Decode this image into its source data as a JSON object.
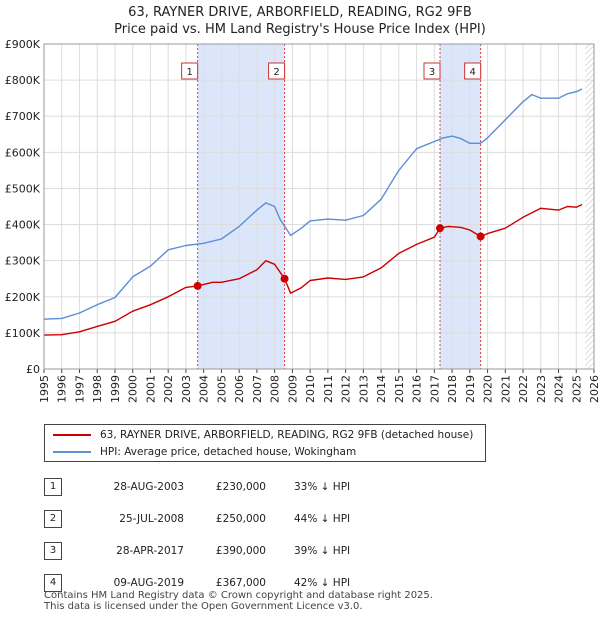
{
  "title": {
    "line1": "63, RAYNER DRIVE, ARBORFIELD, READING, RG2 9FB",
    "line2": "Price paid vs. HM Land Registry's House Price Index (HPI)"
  },
  "colors": {
    "property": "#cc0000",
    "hpi": "#5b8fd4",
    "shade": "#dce6fa"
  },
  "chart_data": {
    "type": "line",
    "xlim": [
      1995,
      2026
    ],
    "ylim": [
      0,
      900000
    ],
    "x_ticks": [
      "1995",
      "1996",
      "1997",
      "1998",
      "1999",
      "2000",
      "2001",
      "2002",
      "2003",
      "2004",
      "2005",
      "2006",
      "2007",
      "2008",
      "2009",
      "2010",
      "2011",
      "2012",
      "2013",
      "2014",
      "2015",
      "2016",
      "2017",
      "2018",
      "2019",
      "2020",
      "2021",
      "2022",
      "2023",
      "2024",
      "2025",
      "2026"
    ],
    "y_ticks": [
      {
        "value": 0,
        "label": "£0"
      },
      {
        "value": 100000,
        "label": "£100K"
      },
      {
        "value": 200000,
        "label": "£200K"
      },
      {
        "value": 300000,
        "label": "£300K"
      },
      {
        "value": 400000,
        "label": "£400K"
      },
      {
        "value": 500000,
        "label": "£500K"
      },
      {
        "value": 600000,
        "label": "£600K"
      },
      {
        "value": 700000,
        "label": "£700K"
      },
      {
        "value": 800000,
        "label": "£800K"
      },
      {
        "value": 900000,
        "label": "£900K"
      }
    ],
    "grid": true,
    "shaded_ranges": [
      [
        2003.66,
        2008.56
      ],
      [
        2017.32,
        2019.61
      ]
    ],
    "future_hatch_start": 2025.5,
    "series": [
      {
        "name": "63, RAYNER DRIVE, ARBORFIELD, READING, RG2 9FB (detached house)",
        "key": "property",
        "x": [
          1995,
          1996,
          1997,
          1998,
          1999,
          2000,
          2001,
          2002,
          2003,
          2003.66,
          2004.5,
          2005,
          2006,
          2007,
          2007.5,
          2008,
          2008.56,
          2008.9,
          2009.5,
          2010,
          2011,
          2012,
          2013,
          2014,
          2015,
          2016,
          2017,
          2017.32,
          2017.8,
          2018.5,
          2019,
          2019.61,
          2020,
          2021,
          2022,
          2023,
          2024,
          2024.5,
          2025,
          2025.3
        ],
        "y": [
          94000,
          95000,
          103000,
          118000,
          132000,
          160000,
          178000,
          200000,
          226000,
          230000,
          240000,
          240000,
          250000,
          275000,
          300000,
          290000,
          250000,
          210000,
          225000,
          245000,
          252000,
          248000,
          255000,
          280000,
          320000,
          345000,
          365000,
          390000,
          395000,
          392000,
          385000,
          367000,
          375000,
          390000,
          420000,
          445000,
          440000,
          450000,
          448000,
          455000
        ]
      },
      {
        "name": "HPI: Average price, detached house, Wokingham",
        "key": "hpi",
        "x": [
          1995,
          1996,
          1997,
          1998,
          1999,
          2000,
          2001,
          2002,
          2003,
          2004,
          2005,
          2006,
          2007,
          2007.5,
          2008,
          2008.3,
          2008.9,
          2009.5,
          2010,
          2011,
          2012,
          2013,
          2014,
          2015,
          2016,
          2017,
          2017.5,
          2018,
          2018.5,
          2019,
          2019.6,
          2020,
          2021,
          2022,
          2022.5,
          2023,
          2024,
          2024.5,
          2025,
          2025.3
        ],
        "y": [
          138000,
          140000,
          155000,
          178000,
          198000,
          255000,
          285000,
          330000,
          342000,
          348000,
          360000,
          395000,
          440000,
          460000,
          450000,
          415000,
          370000,
          390000,
          410000,
          415000,
          412000,
          425000,
          470000,
          550000,
          610000,
          630000,
          640000,
          645000,
          638000,
          625000,
          625000,
          640000,
          690000,
          740000,
          760000,
          750000,
          750000,
          762000,
          768000,
          775000
        ]
      }
    ],
    "markers": [
      {
        "label": "1",
        "x": 2003.66,
        "y": 230000
      },
      {
        "label": "2",
        "x": 2008.56,
        "y": 250000
      },
      {
        "label": "3",
        "x": 2017.32,
        "y": 390000
      },
      {
        "label": "4",
        "x": 2019.61,
        "y": 367000
      }
    ]
  },
  "legend": {
    "property_label": "63, RAYNER DRIVE, ARBORFIELD, READING, RG2 9FB (detached house)",
    "hpi_label": "HPI: Average price, detached house, Wokingham"
  },
  "sales": [
    {
      "num": "1",
      "date": "28-AUG-2003",
      "price": "£230,000",
      "hpi": "33% ↓ HPI"
    },
    {
      "num": "2",
      "date": "25-JUL-2008",
      "price": "£250,000",
      "hpi": "44% ↓ HPI"
    },
    {
      "num": "3",
      "date": "28-APR-2017",
      "price": "£390,000",
      "hpi": "39% ↓ HPI"
    },
    {
      "num": "4",
      "date": "09-AUG-2019",
      "price": "£367,000",
      "hpi": "42% ↓ HPI"
    }
  ],
  "footer": {
    "line1": "Contains HM Land Registry data © Crown copyright and database right 2025.",
    "line2": "This data is licensed under the Open Government Licence v3.0."
  }
}
